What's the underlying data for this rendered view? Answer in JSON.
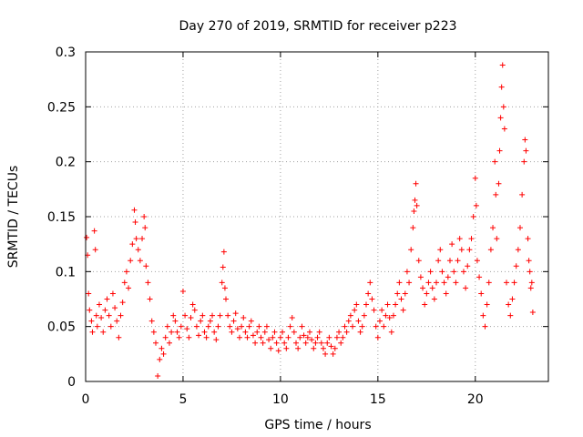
{
  "chart_data": {
    "type": "scatter",
    "title": "Day 270 of 2019, SRMTID for receiver p223",
    "xlabel": "GPS time / hours",
    "ylabel": "SRMTID / TECUs",
    "xlim": [
      0,
      23.75
    ],
    "ylim": [
      0,
      0.3
    ],
    "x_ticks": [
      0,
      5,
      10,
      15,
      20
    ],
    "x_tick_labels": [
      "0",
      "5",
      "10",
      "15",
      "20"
    ],
    "y_ticks": [
      0,
      0.05,
      0.1,
      0.15,
      0.2,
      0.25,
      0.3
    ],
    "y_tick_labels": [
      "0",
      "0.05",
      "0.1",
      "0.15",
      "0.2",
      "0.25",
      "0.3"
    ],
    "grid": true,
    "marker": "+",
    "color": "#ff0000",
    "series": [
      {
        "name": "SRMTID",
        "points": [
          [
            0.05,
            0.131
          ],
          [
            0.1,
            0.115
          ],
          [
            0.15,
            0.08
          ],
          [
            0.2,
            0.065
          ],
          [
            0.3,
            0.055
          ],
          [
            0.35,
            0.045
          ],
          [
            0.45,
            0.137
          ],
          [
            0.5,
            0.12
          ],
          [
            0.55,
            0.06
          ],
          [
            0.6,
            0.05
          ],
          [
            0.7,
            0.07
          ],
          [
            0.8,
            0.058
          ],
          [
            0.9,
            0.045
          ],
          [
            1.0,
            0.065
          ],
          [
            1.1,
            0.075
          ],
          [
            1.2,
            0.06
          ],
          [
            1.3,
            0.05
          ],
          [
            1.4,
            0.08
          ],
          [
            1.5,
            0.067
          ],
          [
            1.6,
            0.055
          ],
          [
            1.7,
            0.04
          ],
          [
            1.8,
            0.06
          ],
          [
            1.9,
            0.072
          ],
          [
            2.0,
            0.09
          ],
          [
            2.1,
            0.1
          ],
          [
            2.2,
            0.085
          ],
          [
            2.3,
            0.11
          ],
          [
            2.4,
            0.125
          ],
          [
            2.5,
            0.156
          ],
          [
            2.55,
            0.145
          ],
          [
            2.6,
            0.13
          ],
          [
            2.7,
            0.12
          ],
          [
            2.8,
            0.11
          ],
          [
            2.9,
            0.13
          ],
          [
            3.0,
            0.15
          ],
          [
            3.05,
            0.14
          ],
          [
            3.1,
            0.105
          ],
          [
            3.2,
            0.09
          ],
          [
            3.3,
            0.075
          ],
          [
            3.4,
            0.055
          ],
          [
            3.5,
            0.045
          ],
          [
            3.6,
            0.035
          ],
          [
            3.7,
            0.005
          ],
          [
            3.8,
            0.02
          ],
          [
            3.9,
            0.03
          ],
          [
            4.0,
            0.025
          ],
          [
            4.1,
            0.04
          ],
          [
            4.2,
            0.05
          ],
          [
            4.3,
            0.035
          ],
          [
            4.4,
            0.045
          ],
          [
            4.5,
            0.06
          ],
          [
            4.6,
            0.055
          ],
          [
            4.7,
            0.045
          ],
          [
            4.8,
            0.04
          ],
          [
            4.9,
            0.05
          ],
          [
            5.0,
            0.082
          ],
          [
            5.1,
            0.06
          ],
          [
            5.2,
            0.048
          ],
          [
            5.3,
            0.04
          ],
          [
            5.4,
            0.058
          ],
          [
            5.5,
            0.07
          ],
          [
            5.6,
            0.065
          ],
          [
            5.7,
            0.05
          ],
          [
            5.8,
            0.042
          ],
          [
            5.9,
            0.055
          ],
          [
            6.0,
            0.06
          ],
          [
            6.1,
            0.045
          ],
          [
            6.2,
            0.04
          ],
          [
            6.3,
            0.05
          ],
          [
            6.4,
            0.055
          ],
          [
            6.5,
            0.06
          ],
          [
            6.6,
            0.045
          ],
          [
            6.7,
            0.038
          ],
          [
            6.8,
            0.05
          ],
          [
            6.9,
            0.06
          ],
          [
            7.0,
            0.09
          ],
          [
            7.05,
            0.104
          ],
          [
            7.1,
            0.118
          ],
          [
            7.15,
            0.085
          ],
          [
            7.2,
            0.075
          ],
          [
            7.3,
            0.06
          ],
          [
            7.4,
            0.05
          ],
          [
            7.5,
            0.045
          ],
          [
            7.6,
            0.055
          ],
          [
            7.7,
            0.062
          ],
          [
            7.8,
            0.048
          ],
          [
            7.9,
            0.04
          ],
          [
            8.0,
            0.05
          ],
          [
            8.1,
            0.058
          ],
          [
            8.2,
            0.045
          ],
          [
            8.3,
            0.04
          ],
          [
            8.4,
            0.05
          ],
          [
            8.5,
            0.055
          ],
          [
            8.6,
            0.042
          ],
          [
            8.7,
            0.035
          ],
          [
            8.8,
            0.045
          ],
          [
            8.9,
            0.05
          ],
          [
            9.0,
            0.04
          ],
          [
            9.1,
            0.035
          ],
          [
            9.2,
            0.045
          ],
          [
            9.3,
            0.05
          ],
          [
            9.4,
            0.038
          ],
          [
            9.5,
            0.03
          ],
          [
            9.6,
            0.04
          ],
          [
            9.7,
            0.045
          ],
          [
            9.8,
            0.035
          ],
          [
            9.9,
            0.028
          ],
          [
            10.0,
            0.04
          ],
          [
            10.1,
            0.045
          ],
          [
            10.2,
            0.035
          ],
          [
            10.3,
            0.03
          ],
          [
            10.4,
            0.04
          ],
          [
            10.5,
            0.05
          ],
          [
            10.6,
            0.058
          ],
          [
            10.7,
            0.045
          ],
          [
            10.8,
            0.035
          ],
          [
            10.9,
            0.03
          ],
          [
            11.0,
            0.04
          ],
          [
            11.1,
            0.05
          ],
          [
            11.2,
            0.042
          ],
          [
            11.3,
            0.035
          ],
          [
            11.4,
            0.04
          ],
          [
            11.5,
            0.045
          ],
          [
            11.6,
            0.038
          ],
          [
            11.7,
            0.03
          ],
          [
            11.8,
            0.035
          ],
          [
            11.9,
            0.04
          ],
          [
            12.0,
            0.045
          ],
          [
            12.1,
            0.035
          ],
          [
            12.2,
            0.03
          ],
          [
            12.3,
            0.025
          ],
          [
            12.4,
            0.035
          ],
          [
            12.5,
            0.04
          ],
          [
            12.6,
            0.032
          ],
          [
            12.7,
            0.025
          ],
          [
            12.8,
            0.03
          ],
          [
            12.9,
            0.04
          ],
          [
            13.0,
            0.045
          ],
          [
            13.1,
            0.035
          ],
          [
            13.2,
            0.04
          ],
          [
            13.3,
            0.05
          ],
          [
            13.4,
            0.045
          ],
          [
            13.5,
            0.055
          ],
          [
            13.6,
            0.06
          ],
          [
            13.7,
            0.05
          ],
          [
            13.8,
            0.065
          ],
          [
            13.9,
            0.07
          ],
          [
            14.0,
            0.055
          ],
          [
            14.1,
            0.045
          ],
          [
            14.2,
            0.05
          ],
          [
            14.3,
            0.06
          ],
          [
            14.4,
            0.07
          ],
          [
            14.5,
            0.08
          ],
          [
            14.6,
            0.09
          ],
          [
            14.7,
            0.075
          ],
          [
            14.8,
            0.065
          ],
          [
            14.9,
            0.05
          ],
          [
            15.0,
            0.04
          ],
          [
            15.1,
            0.055
          ],
          [
            15.2,
            0.065
          ],
          [
            15.3,
            0.05
          ],
          [
            15.4,
            0.06
          ],
          [
            15.5,
            0.07
          ],
          [
            15.6,
            0.058
          ],
          [
            15.7,
            0.045
          ],
          [
            15.8,
            0.06
          ],
          [
            15.9,
            0.07
          ],
          [
            16.0,
            0.08
          ],
          [
            16.1,
            0.09
          ],
          [
            16.2,
            0.075
          ],
          [
            16.3,
            0.065
          ],
          [
            16.4,
            0.08
          ],
          [
            16.5,
            0.1
          ],
          [
            16.6,
            0.09
          ],
          [
            16.7,
            0.12
          ],
          [
            16.8,
            0.14
          ],
          [
            16.85,
            0.155
          ],
          [
            16.9,
            0.165
          ],
          [
            16.95,
            0.18
          ],
          [
            17.0,
            0.16
          ],
          [
            17.1,
            0.11
          ],
          [
            17.2,
            0.095
          ],
          [
            17.3,
            0.085
          ],
          [
            17.4,
            0.07
          ],
          [
            17.5,
            0.08
          ],
          [
            17.6,
            0.09
          ],
          [
            17.7,
            0.1
          ],
          [
            17.8,
            0.085
          ],
          [
            17.9,
            0.075
          ],
          [
            18.0,
            0.09
          ],
          [
            18.1,
            0.11
          ],
          [
            18.2,
            0.12
          ],
          [
            18.3,
            0.1
          ],
          [
            18.4,
            0.09
          ],
          [
            18.5,
            0.08
          ],
          [
            18.6,
            0.095
          ],
          [
            18.7,
            0.11
          ],
          [
            18.8,
            0.125
          ],
          [
            18.9,
            0.1
          ],
          [
            19.0,
            0.09
          ],
          [
            19.1,
            0.11
          ],
          [
            19.2,
            0.13
          ],
          [
            19.3,
            0.12
          ],
          [
            19.4,
            0.1
          ],
          [
            19.5,
            0.085
          ],
          [
            19.6,
            0.105
          ],
          [
            19.7,
            0.12
          ],
          [
            19.8,
            0.13
          ],
          [
            19.9,
            0.15
          ],
          [
            20.0,
            0.185
          ],
          [
            20.05,
            0.16
          ],
          [
            20.1,
            0.11
          ],
          [
            20.2,
            0.095
          ],
          [
            20.3,
            0.08
          ],
          [
            20.4,
            0.06
          ],
          [
            20.5,
            0.05
          ],
          [
            20.6,
            0.07
          ],
          [
            20.7,
            0.09
          ],
          [
            20.8,
            0.12
          ],
          [
            20.9,
            0.14
          ],
          [
            21.0,
            0.2
          ],
          [
            21.05,
            0.17
          ],
          [
            21.1,
            0.13
          ],
          [
            21.2,
            0.18
          ],
          [
            21.25,
            0.21
          ],
          [
            21.3,
            0.24
          ],
          [
            21.35,
            0.268
          ],
          [
            21.4,
            0.288
          ],
          [
            21.45,
            0.25
          ],
          [
            21.5,
            0.23
          ],
          [
            21.6,
            0.09
          ],
          [
            21.7,
            0.07
          ],
          [
            21.8,
            0.06
          ],
          [
            21.9,
            0.075
          ],
          [
            22.0,
            0.09
          ],
          [
            22.1,
            0.105
          ],
          [
            22.2,
            0.12
          ],
          [
            22.3,
            0.14
          ],
          [
            22.4,
            0.17
          ],
          [
            22.5,
            0.2
          ],
          [
            22.55,
            0.22
          ],
          [
            22.6,
            0.21
          ],
          [
            22.7,
            0.13
          ],
          [
            22.75,
            0.11
          ],
          [
            22.8,
            0.1
          ],
          [
            22.85,
            0.085
          ],
          [
            22.9,
            0.09
          ],
          [
            22.95,
            0.063
          ]
        ]
      }
    ]
  }
}
